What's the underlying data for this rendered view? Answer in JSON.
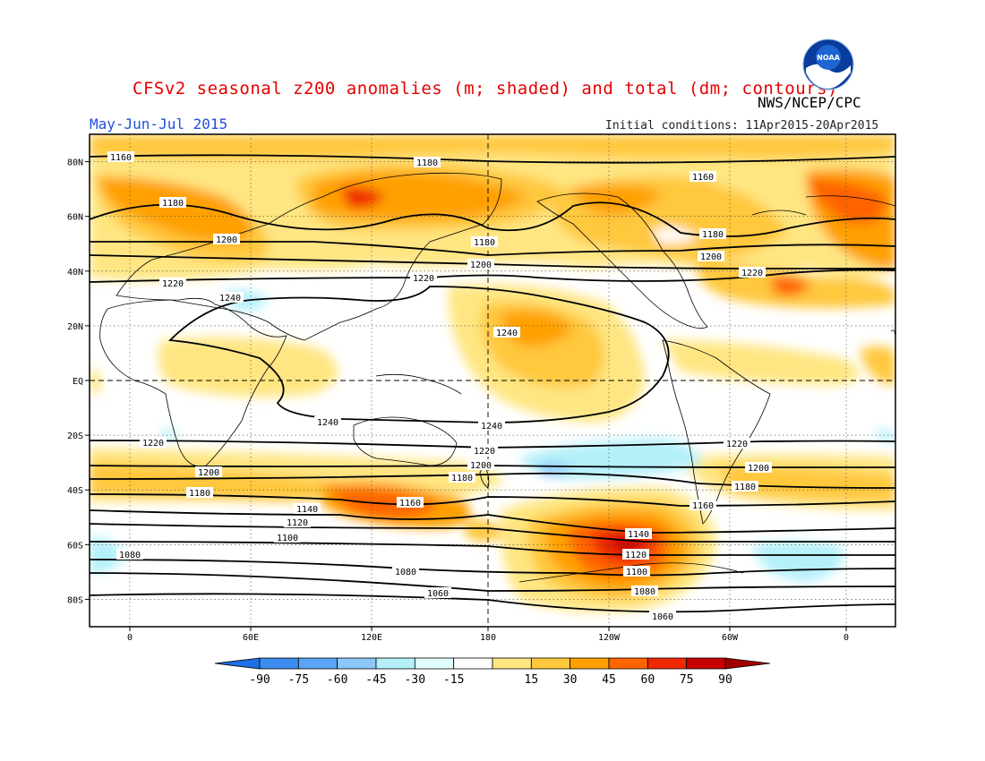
{
  "header": {
    "title": "CFSv2 seasonal z200 anomalies (m; shaded) and total (dm; contours)",
    "credit": "NWS/NCEP/CPC",
    "season": "May-Jun-Jul 2015",
    "initial_conditions": "Initial conditions: 11Apr2015-20Apr2015",
    "logo_text": "NOAA"
  },
  "map": {
    "lat_labels": [
      "80N",
      "60N",
      "40N",
      "20N",
      "EQ",
      "20S",
      "40S",
      "60S",
      "80S"
    ],
    "lon_labels": [
      "0",
      "60E",
      "120E",
      "180",
      "120W",
      "60W",
      "0"
    ]
  },
  "colorbar": {
    "labels": [
      "-90",
      "-75",
      "-60",
      "-45",
      "-30",
      "-15",
      "15",
      "30",
      "45",
      "60",
      "75",
      "90"
    ],
    "colors": [
      "#1e6ee6",
      "#3c8cf0",
      "#5aa5f5",
      "#8cc8fa",
      "#b4f0fa",
      "#e1ffff",
      "#ffffff",
      "#ffe682",
      "#ffc83c",
      "#ffa000",
      "#ff6400",
      "#f02800",
      "#c80000",
      "#a00000"
    ]
  },
  "contour_labels": [
    {
      "text": "1160"
    },
    {
      "text": "1180"
    },
    {
      "text": "1160"
    },
    {
      "text": "1180"
    },
    {
      "text": "1180"
    },
    {
      "text": "1180"
    },
    {
      "text": "1200"
    },
    {
      "text": "1200"
    },
    {
      "text": "1200"
    },
    {
      "text": "1220"
    },
    {
      "text": "1220"
    },
    {
      "text": "1220"
    },
    {
      "text": "1240"
    },
    {
      "text": "1240"
    },
    {
      "text": "1240"
    },
    {
      "text": "1240"
    },
    {
      "text": "1220"
    },
    {
      "text": "1220"
    },
    {
      "text": "1220"
    },
    {
      "text": "1200"
    },
    {
      "text": "1200"
    },
    {
      "text": "1200"
    },
    {
      "text": "1180"
    },
    {
      "text": "1180"
    },
    {
      "text": "1180"
    },
    {
      "text": "1160"
    },
    {
      "text": "1160"
    },
    {
      "text": "1140"
    },
    {
      "text": "1140"
    },
    {
      "text": "1120"
    },
    {
      "text": "1120"
    },
    {
      "text": "1100"
    },
    {
      "text": "1100"
    },
    {
      "text": "1080"
    },
    {
      "text": "1080"
    },
    {
      "text": "1080"
    },
    {
      "text": "1060"
    },
    {
      "text": "1060"
    }
  ]
}
